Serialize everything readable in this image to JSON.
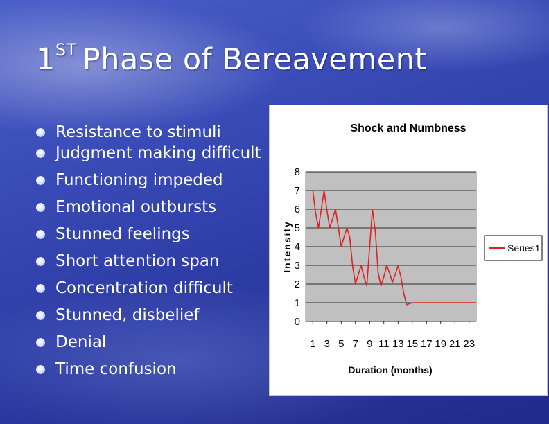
{
  "slide": {
    "title_number": "1",
    "title_superscript": "ST",
    "title_text": "Phase of Bereavement"
  },
  "bullets": [
    "Resistance to stimuli",
    "Judgment making difficult",
    "Functioning impeded",
    "Emotional outbursts",
    "Stunned feelings",
    "Short attention span",
    "Concentration difficult",
    "Stunned, disbelief",
    "Denial",
    "Time confusion"
  ],
  "colors": {
    "series": "#e02020",
    "plot_background": "#c0c0c0",
    "bullet_text": "#ffffff"
  },
  "chart_data": {
    "type": "line",
    "title": "Shock and Numbness",
    "xlabel": "Duration (months)",
    "ylabel": "Intensity",
    "x_tick_labels": [
      "1",
      "3",
      "5",
      "7",
      "9",
      "11",
      "13",
      "15",
      "17",
      "19",
      "21",
      "23"
    ],
    "y_tick_labels": [
      "0",
      "1",
      "2",
      "3",
      "4",
      "5",
      "6",
      "7",
      "8"
    ],
    "xlim": [
      0,
      24
    ],
    "ylim": [
      0,
      8
    ],
    "grid": "horizontal",
    "legend_position": "right",
    "series": [
      {
        "name": "Series1",
        "x": [
          1,
          1.4,
          1.8,
          2.2,
          2.6,
          3,
          3.4,
          3.8,
          4.2,
          4.6,
          5,
          5.4,
          5.8,
          6.2,
          6.6,
          7,
          7.4,
          7.8,
          8.2,
          8.6,
          9,
          9.4,
          9.8,
          10.2,
          10.6,
          11,
          11.4,
          11.8,
          12.2,
          12.6,
          13,
          13.4,
          13.8,
          14.2,
          14.6,
          15,
          15.4,
          15.8,
          16.2,
          16.6,
          17,
          18,
          19,
          20,
          21,
          22,
          23,
          24
        ],
        "y": [
          7,
          5.8,
          5,
          6,
          7,
          5.9,
          5,
          5.5,
          6,
          5,
          4,
          4.5,
          5,
          4.5,
          3,
          2,
          2.5,
          3,
          2.4,
          1.9,
          4,
          6,
          4.8,
          2.6,
          1.9,
          2.4,
          3,
          2.6,
          2.1,
          2.5,
          3,
          2.4,
          1.5,
          0.9,
          0.95,
          1,
          1,
          1,
          1,
          1,
          1,
          1,
          1,
          1,
          1,
          1,
          1,
          1
        ]
      }
    ]
  }
}
